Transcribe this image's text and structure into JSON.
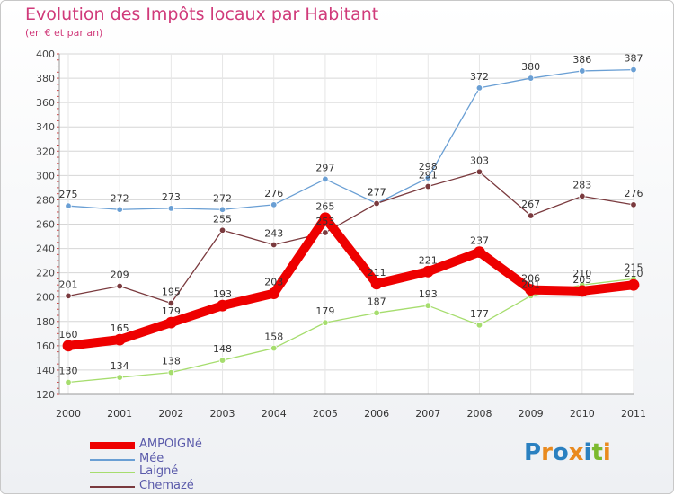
{
  "title": "Evolution des Impôts locaux par Habitant",
  "subtitle": "(en € et par an)",
  "logo": {
    "text": "Proxiti",
    "colors": [
      "#2a80c0",
      "#e98a1e",
      "#2a80c0",
      "#e98a1e",
      "#2a80c0",
      "#7cba2e",
      "#e98a1e"
    ]
  },
  "chart_data": {
    "type": "line",
    "title": "Evolution des Impôts locaux par Habitant",
    "subtitle": "(en € et par an)",
    "xlabel": "",
    "ylabel": "",
    "ylim": [
      120,
      400
    ],
    "yticks": [
      120,
      140,
      160,
      180,
      200,
      220,
      240,
      260,
      280,
      300,
      320,
      340,
      360,
      380,
      400
    ],
    "categories": [
      "2000",
      "2001",
      "2002",
      "2003",
      "2004",
      "2005",
      "2006",
      "2007",
      "2008",
      "2009",
      "2010",
      "2011"
    ],
    "legend_position": "bottom-left",
    "series": [
      {
        "name": "AMPOIGNé",
        "color": "#ee0000",
        "highlight": true,
        "values": [
          160,
          165,
          179,
          193,
          203,
          265,
          211,
          221,
          237,
          206,
          205,
          210
        ]
      },
      {
        "name": "Mée",
        "color": "#6a9fd4",
        "values": [
          275,
          272,
          273,
          272,
          276,
          297,
          277,
          298,
          372,
          380,
          386,
          387
        ]
      },
      {
        "name": "Laigné",
        "color": "#a6dd6e",
        "values": [
          130,
          134,
          138,
          148,
          158,
          179,
          187,
          193,
          177,
          201,
          210,
          215
        ]
      },
      {
        "name": "Chemazé",
        "color": "#7a3a3e",
        "values": [
          201,
          209,
          195,
          255,
          243,
          253,
          277,
          291,
          303,
          267,
          283,
          276
        ]
      }
    ]
  }
}
